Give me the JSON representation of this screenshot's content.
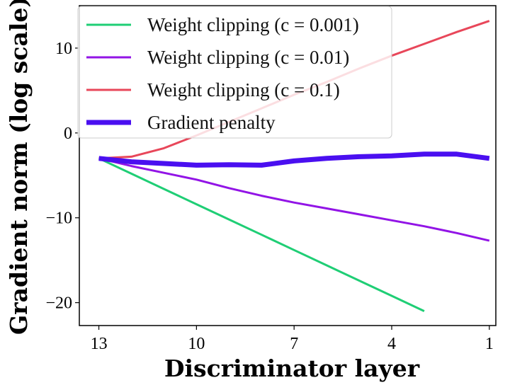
{
  "chart_data": {
    "type": "line",
    "title": "",
    "xlabel": "Discriminator layer",
    "ylabel": "Gradient norm (log scale)",
    "x_reversed": true,
    "xlim": [
      13.6,
      0.8
    ],
    "ylim": [
      -22.7,
      15
    ],
    "x_ticks": [
      13,
      10,
      7,
      4,
      1
    ],
    "y_ticks": [
      10,
      0,
      -10,
      -20
    ],
    "y_tick_labels": [
      "10",
      "0",
      "−10",
      "−20"
    ],
    "grid": false,
    "legend_placement": "top-left",
    "x": [
      13,
      12,
      11,
      10,
      9,
      8,
      7,
      6,
      5,
      4,
      3,
      2,
      1
    ],
    "series": [
      {
        "name": "Weight clipping (c = 0.001)",
        "color": "#1fce75",
        "width": 3,
        "values": [
          -3,
          -4.8,
          -6.6,
          -8.4,
          -10.2,
          -12,
          -13.8,
          -15.6,
          -17.4,
          -19.2,
          -21,
          null,
          null
        ]
      },
      {
        "name": "Weight clipping (c = 0.01)",
        "color": "#9214e6",
        "width": 3,
        "values": [
          -3,
          -3.9,
          -4.7,
          -5.5,
          -6.5,
          -7.4,
          -8.2,
          -8.9,
          -9.6,
          -10.3,
          -11.0,
          -11.8,
          -12.7
        ]
      },
      {
        "name": "Weight clipping (c = 0.1)",
        "color": "#e8475a",
        "width": 3,
        "values": [
          -3,
          -2.8,
          -1.8,
          -0.3,
          1.3,
          2.9,
          4.5,
          6.0,
          7.6,
          9.1,
          10.5,
          11.9,
          13.2
        ]
      },
      {
        "name": "Gradient penalty",
        "color": "#4a0ff0",
        "width": 7,
        "values": [
          -3,
          -3.4,
          -3.6,
          -3.8,
          -3.75,
          -3.8,
          -3.3,
          -3.0,
          -2.8,
          -2.7,
          -2.5,
          -2.5,
          -3.0
        ]
      }
    ]
  }
}
